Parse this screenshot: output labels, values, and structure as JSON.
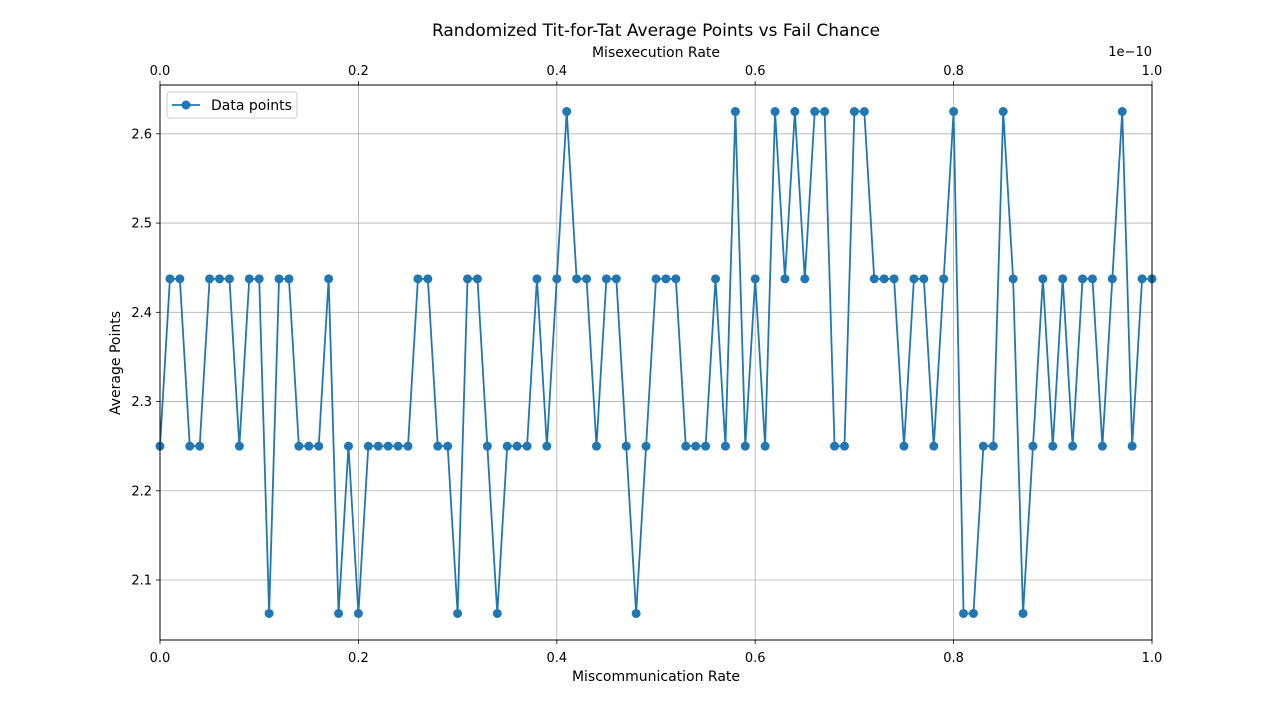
{
  "chart_data": {
    "type": "line",
    "title": "Randomized Tit-for-Tat Average Points vs Fail Chance",
    "xlabel": "Miscommunication Rate",
    "ylabel": "Average Points",
    "top_xlabel": "Misexecution Rate",
    "top_axis_offset_text": "1e−10",
    "xlim": [
      0,
      1
    ],
    "ylim": [
      2.0328,
      2.6547
    ],
    "top_xlim": [
      0,
      1
    ],
    "x_ticks": [
      0,
      0.2,
      0.4,
      0.6,
      0.8,
      1.0
    ],
    "x_tick_labels": [
      "0.0",
      "0.2",
      "0.4",
      "0.6",
      "0.8",
      "1.0"
    ],
    "top_x_tick_labels": [
      "0.0",
      "0.2",
      "0.4",
      "0.6",
      "0.8",
      "1.0"
    ],
    "y_ticks": [
      2.1,
      2.2,
      2.3,
      2.4,
      2.5,
      2.6
    ],
    "y_tick_labels": [
      "2.1",
      "2.2",
      "2.3",
      "2.4",
      "2.5",
      "2.6"
    ],
    "grid": true,
    "legend_position": "top-left",
    "color": "#1f77b4",
    "series": [
      {
        "name": "Data points",
        "x": [
          0.0,
          0.01,
          0.02,
          0.03,
          0.04,
          0.05,
          0.06,
          0.07,
          0.08,
          0.09,
          0.1,
          0.11,
          0.12,
          0.13,
          0.14,
          0.15,
          0.16,
          0.17,
          0.18,
          0.19,
          0.2,
          0.21,
          0.22,
          0.23,
          0.24,
          0.25,
          0.26,
          0.27,
          0.28,
          0.29,
          0.3,
          0.31,
          0.32,
          0.33,
          0.34,
          0.35,
          0.36,
          0.37,
          0.38,
          0.39,
          0.4,
          0.41,
          0.42,
          0.43,
          0.44,
          0.45,
          0.46,
          0.47,
          0.48,
          0.49,
          0.5,
          0.51,
          0.52,
          0.53,
          0.54,
          0.55,
          0.56,
          0.57,
          0.58,
          0.59,
          0.6,
          0.61,
          0.62,
          0.63,
          0.64,
          0.65,
          0.66,
          0.67,
          0.68,
          0.69,
          0.7,
          0.71,
          0.72,
          0.73,
          0.74,
          0.75,
          0.76,
          0.77,
          0.78,
          0.79,
          0.8,
          0.81,
          0.82,
          0.83,
          0.84,
          0.85,
          0.86,
          0.87,
          0.88,
          0.89,
          0.9,
          0.91,
          0.92,
          0.93,
          0.94,
          0.95,
          0.96,
          0.97,
          0.98,
          0.99,
          1.0
        ],
        "y": [
          2.25,
          2.4375,
          2.4375,
          2.25,
          2.25,
          2.4375,
          2.4375,
          2.4375,
          2.25,
          2.4375,
          2.4375,
          2.0625,
          2.4375,
          2.4375,
          2.25,
          2.25,
          2.25,
          2.4375,
          2.0625,
          2.25,
          2.0625,
          2.25,
          2.25,
          2.25,
          2.25,
          2.25,
          2.4375,
          2.4375,
          2.25,
          2.25,
          2.0625,
          2.4375,
          2.4375,
          2.25,
          2.0625,
          2.25,
          2.25,
          2.25,
          2.4375,
          2.25,
          2.4375,
          2.625,
          2.4375,
          2.4375,
          2.25,
          2.4375,
          2.4375,
          2.25,
          2.0625,
          2.25,
          2.4375,
          2.4375,
          2.4375,
          2.25,
          2.25,
          2.25,
          2.4375,
          2.25,
          2.625,
          2.25,
          2.4375,
          2.25,
          2.625,
          2.4375,
          2.625,
          2.4375,
          2.625,
          2.625,
          2.25,
          2.25,
          2.625,
          2.625,
          2.4375,
          2.4375,
          2.4375,
          2.25,
          2.4375,
          2.4375,
          2.25,
          2.4375,
          2.625,
          2.0625,
          2.0625,
          2.25,
          2.25,
          2.625,
          2.4375,
          2.0625,
          2.25,
          2.4375,
          2.25,
          2.4375,
          2.25,
          2.4375,
          2.4375,
          2.25,
          2.4375,
          2.625,
          2.25,
          2.4375,
          2.4375
        ]
      }
    ]
  }
}
